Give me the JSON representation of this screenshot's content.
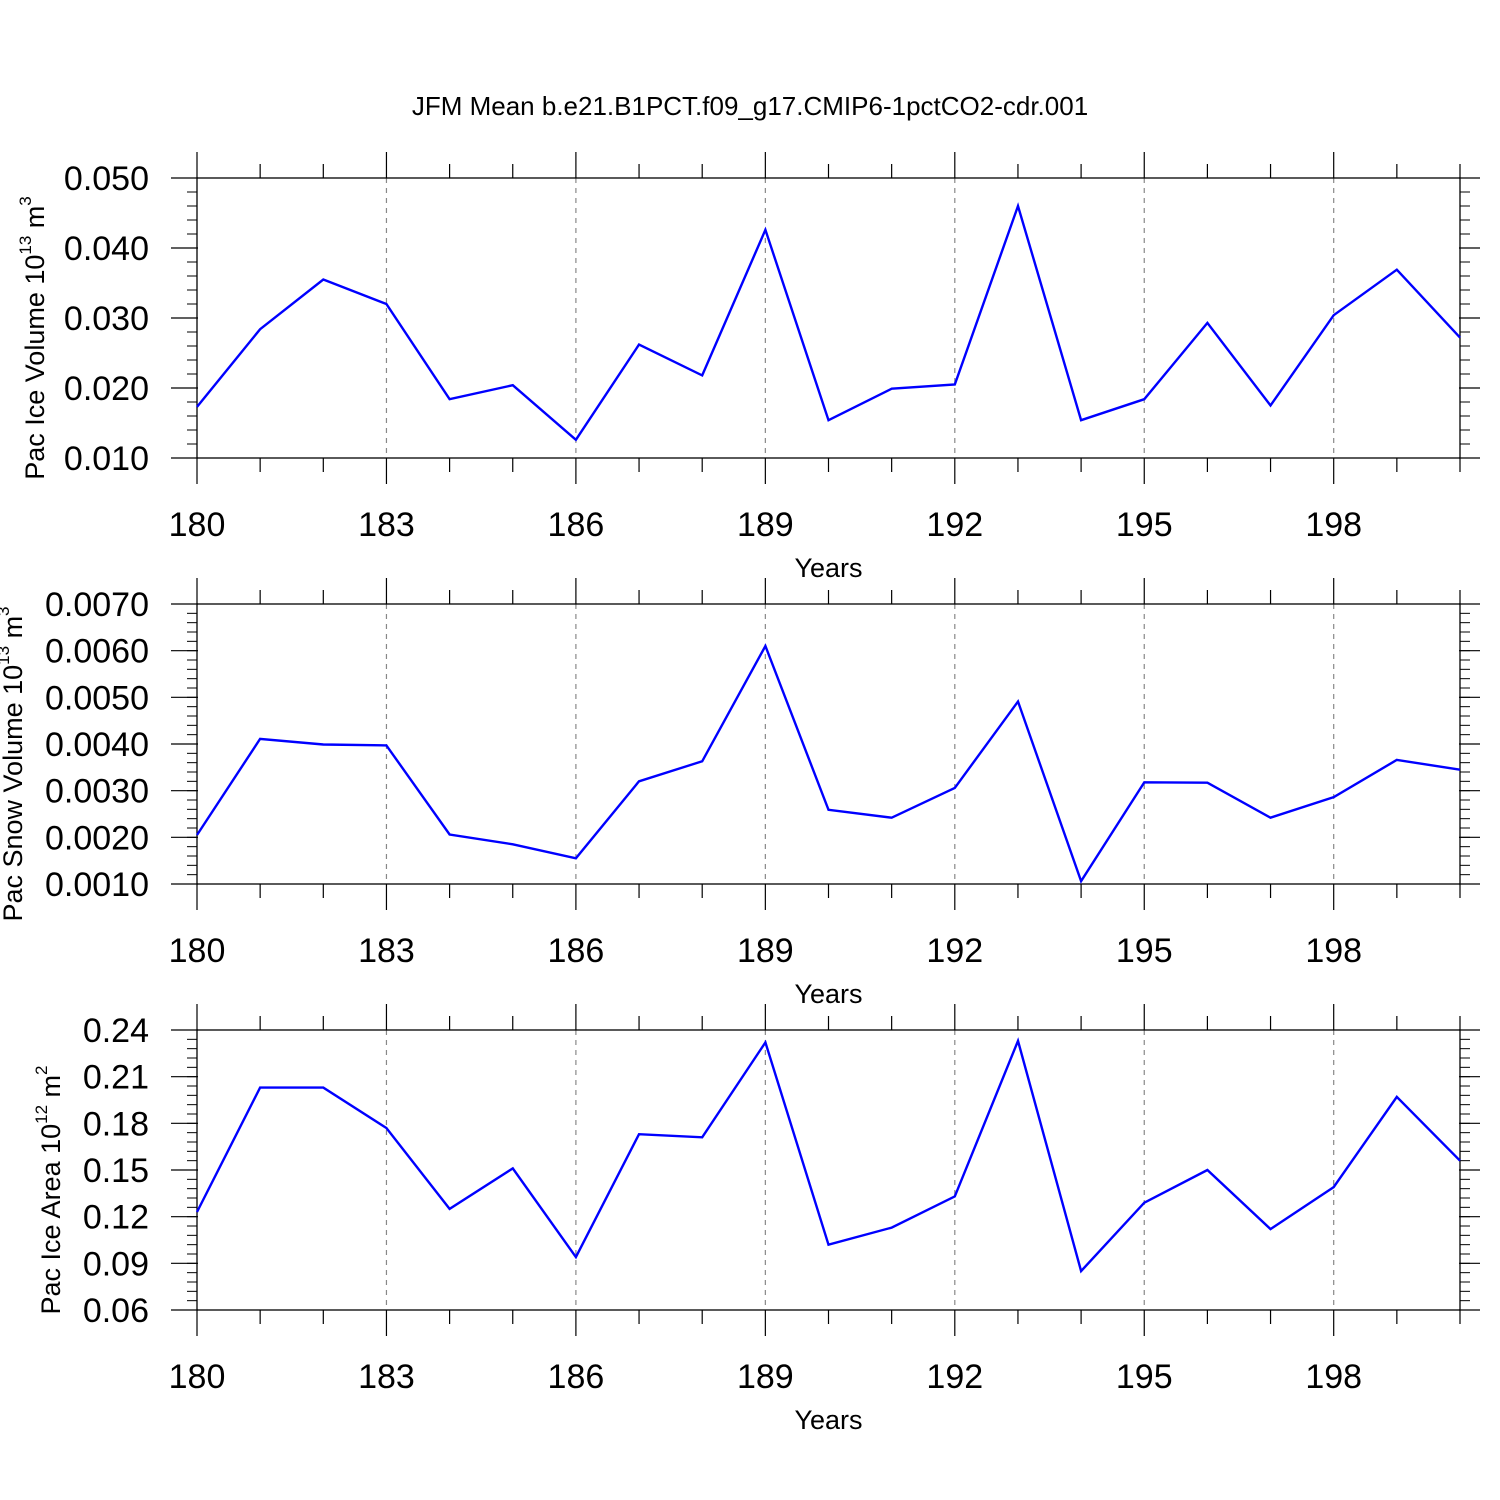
{
  "chart_data": [
    {
      "type": "line",
      "panel": "top",
      "title": "JFM Mean b.e21.B1PCT.f09_g17.CMIP6-1pctCO2-cdr.001",
      "ylabel": "Pac Ice Volume 10",
      "ylabel_exp": "13",
      "ylabel_unit": " m",
      "ylabel_unit_exp": "3",
      "xlabel": "Years",
      "xlim": [
        180,
        200
      ],
      "ylim": [
        0.01,
        0.05
      ],
      "yticks": [
        0.01,
        0.02,
        0.03,
        0.04,
        0.05
      ],
      "ytick_labels": [
        "0.010",
        "0.020",
        "0.030",
        "0.040",
        "0.050"
      ],
      "y_minor_step": 0.002,
      "xticks": [
        180,
        183,
        186,
        189,
        192,
        195,
        198
      ],
      "xtick_labels": [
        "180",
        "183",
        "186",
        "189",
        "192",
        "195",
        "198"
      ],
      "grid": "x dashed",
      "line_color": "#0000ff",
      "series": [
        {
          "name": "Pac Ice Volume",
          "x": [
            180,
            181,
            182,
            183,
            184,
            185,
            186,
            187,
            188,
            189,
            190,
            191,
            192,
            193,
            194,
            195,
            196,
            197,
            198,
            199,
            200
          ],
          "values": [
            0.0173,
            0.0284,
            0.0355,
            0.032,
            0.0184,
            0.0204,
            0.0126,
            0.0262,
            0.0218,
            0.0426,
            0.0154,
            0.0199,
            0.0205,
            0.046,
            0.0154,
            0.0184,
            0.0293,
            0.0175,
            0.0304,
            0.0369,
            0.0272
          ]
        }
      ]
    },
    {
      "type": "line",
      "panel": "middle",
      "ylabel": "Pac Snow Volume 10",
      "ylabel_exp": "13",
      "ylabel_unit": " m",
      "ylabel_unit_exp": "3",
      "xlabel": "Years",
      "xlim": [
        180,
        200
      ],
      "ylim": [
        0.001,
        0.007
      ],
      "yticks": [
        0.001,
        0.002,
        0.003,
        0.004,
        0.005,
        0.006,
        0.007
      ],
      "ytick_labels": [
        "0.0010",
        "0.0020",
        "0.0030",
        "0.0040",
        "0.0050",
        "0.0060",
        "0.0070"
      ],
      "y_minor_step": 0.0002,
      "xticks": [
        180,
        183,
        186,
        189,
        192,
        195,
        198
      ],
      "xtick_labels": [
        "180",
        "183",
        "186",
        "189",
        "192",
        "195",
        "198"
      ],
      "grid": "x dashed",
      "line_color": "#0000ff",
      "series": [
        {
          "name": "Pac Snow Volume",
          "x": [
            180,
            181,
            182,
            183,
            184,
            185,
            186,
            187,
            188,
            189,
            190,
            191,
            192,
            193,
            194,
            195,
            196,
            197,
            198,
            199,
            200
          ],
          "values": [
            0.00205,
            0.00411,
            0.00399,
            0.00397,
            0.00206,
            0.00185,
            0.00155,
            0.0032,
            0.00363,
            0.0061,
            0.00259,
            0.00242,
            0.00306,
            0.00491,
            0.00106,
            0.00318,
            0.00317,
            0.00242,
            0.00286,
            0.00366,
            0.00345
          ]
        }
      ]
    },
    {
      "type": "line",
      "panel": "bottom",
      "ylabel": "Pac Ice Area 10",
      "ylabel_exp": "12",
      "ylabel_unit": " m",
      "ylabel_unit_exp": "2",
      "xlabel": "Years",
      "xlim": [
        180,
        200
      ],
      "ylim": [
        0.06,
        0.24
      ],
      "yticks": [
        0.06,
        0.09,
        0.12,
        0.15,
        0.18,
        0.21,
        0.24
      ],
      "ytick_labels": [
        "0.06",
        "0.09",
        "0.12",
        "0.15",
        "0.18",
        "0.21",
        "0.24"
      ],
      "y_minor_step": 0.006,
      "xticks": [
        180,
        183,
        186,
        189,
        192,
        195,
        198
      ],
      "xtick_labels": [
        "180",
        "183",
        "186",
        "189",
        "192",
        "195",
        "198"
      ],
      "grid": "x dashed",
      "line_color": "#0000ff",
      "series": [
        {
          "name": "Pac Ice Area",
          "x": [
            180,
            181,
            182,
            183,
            184,
            185,
            186,
            187,
            188,
            189,
            190,
            191,
            192,
            193,
            194,
            195,
            196,
            197,
            198,
            199,
            200
          ],
          "values": [
            0.123,
            0.203,
            0.203,
            0.177,
            0.125,
            0.151,
            0.094,
            0.173,
            0.171,
            0.232,
            0.102,
            0.113,
            0.133,
            0.233,
            0.085,
            0.129,
            0.15,
            0.112,
            0.139,
            0.197,
            0.156
          ]
        }
      ]
    }
  ]
}
